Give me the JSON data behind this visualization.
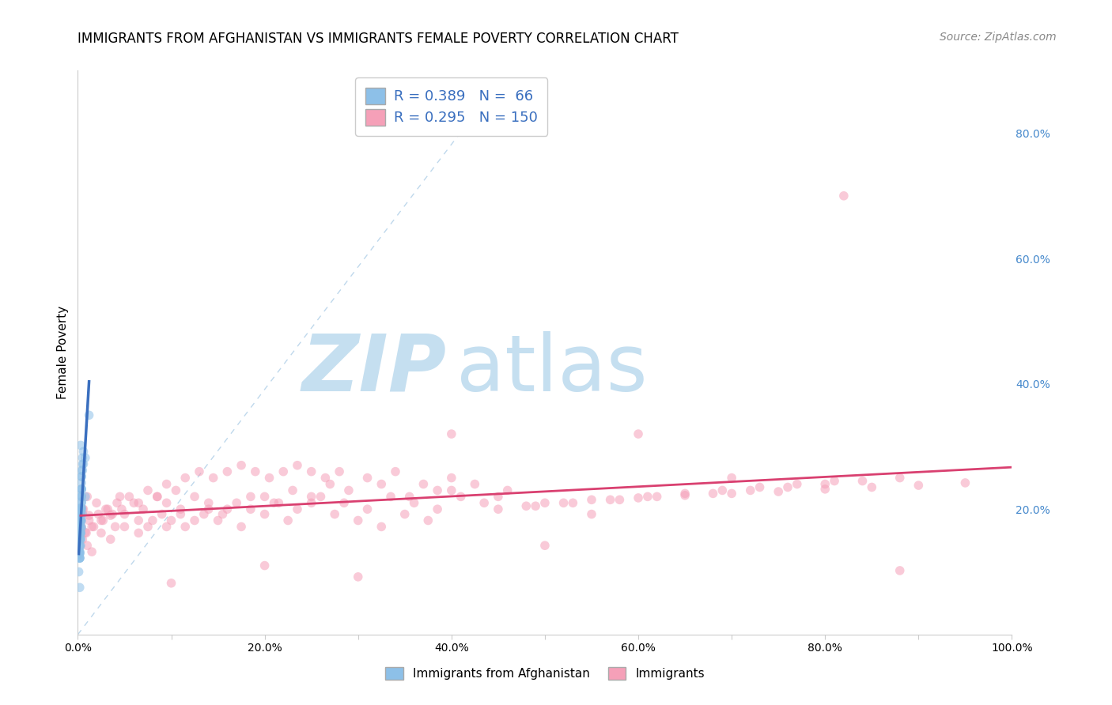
{
  "title": "IMMIGRANTS FROM AFGHANISTAN VS IMMIGRANTS FEMALE POVERTY CORRELATION CHART",
  "source": "Source: ZipAtlas.com",
  "ylabel": "Female Poverty",
  "xlim": [
    0.0,
    1.0
  ],
  "ylim": [
    0.0,
    0.9
  ],
  "xtick_labels": [
    "0.0%",
    "",
    "20.0%",
    "",
    "40.0%",
    "",
    "60.0%",
    "",
    "80.0%",
    "",
    "100.0%"
  ],
  "xtick_vals": [
    0.0,
    0.1,
    0.2,
    0.3,
    0.4,
    0.5,
    0.6,
    0.7,
    0.8,
    0.9,
    1.0
  ],
  "ytick_labels": [
    "20.0%",
    "40.0%",
    "60.0%",
    "80.0%"
  ],
  "ytick_vals": [
    0.2,
    0.4,
    0.6,
    0.8
  ],
  "grid_color": "#cccccc",
  "background_color": "#ffffff",
  "legend_color1": "#8dc0e8",
  "legend_color2": "#f5a0b8",
  "scatter1_color": "#8dc0e8",
  "scatter2_color": "#f5a0b8",
  "line1_color": "#3a6fbf",
  "line2_color": "#d94070",
  "diag_line_color": "#b8d4ea",
  "title_fontsize": 12,
  "source_fontsize": 10,
  "ylabel_fontsize": 11,
  "tick_fontsize": 10,
  "scatter_size": 70,
  "scatter_alpha": 0.55,
  "watermark_zip_color": "#c5dff0",
  "watermark_atlas_color": "#c5dff0",
  "blue_x": [
    0.002,
    0.003,
    0.002,
    0.003,
    0.004,
    0.003,
    0.004,
    0.002,
    0.002,
    0.003,
    0.003,
    0.004,
    0.002,
    0.004,
    0.003,
    0.003,
    0.004,
    0.002,
    0.003,
    0.003,
    0.002,
    0.002,
    0.003,
    0.003,
    0.002,
    0.002,
    0.003,
    0.003,
    0.004,
    0.004,
    0.004,
    0.005,
    0.006,
    0.008,
    0.004,
    0.003,
    0.003,
    0.002,
    0.002,
    0.004,
    0.004,
    0.005,
    0.005,
    0.006,
    0.004,
    0.003,
    0.003,
    0.002,
    0.002,
    0.001,
    0.002,
    0.003,
    0.003,
    0.002,
    0.002,
    0.003,
    0.003,
    0.004,
    0.004,
    0.003,
    0.002,
    0.012,
    0.008,
    0.005,
    0.004,
    0.003
  ],
  "blue_y": [
    0.175,
    0.182,
    0.155,
    0.2,
    0.22,
    0.19,
    0.21,
    0.163,
    0.14,
    0.178,
    0.19,
    0.2,
    0.13,
    0.17,
    0.153,
    0.162,
    0.182,
    0.142,
    0.192,
    0.172,
    0.122,
    0.132,
    0.162,
    0.202,
    0.128,
    0.142,
    0.152,
    0.222,
    0.242,
    0.232,
    0.252,
    0.262,
    0.272,
    0.282,
    0.212,
    0.192,
    0.162,
    0.132,
    0.122,
    0.232,
    0.252,
    0.272,
    0.282,
    0.292,
    0.202,
    0.182,
    0.172,
    0.152,
    0.122,
    0.1,
    0.13,
    0.142,
    0.182,
    0.122,
    0.15,
    0.17,
    0.2,
    0.22,
    0.232,
    0.162,
    0.075,
    0.35,
    0.22,
    0.192,
    0.262,
    0.302
  ],
  "pink_x": [
    0.003,
    0.005,
    0.008,
    0.01,
    0.012,
    0.015,
    0.02,
    0.025,
    0.03,
    0.035,
    0.04,
    0.045,
    0.05,
    0.06,
    0.065,
    0.07,
    0.075,
    0.085,
    0.09,
    0.095,
    0.1,
    0.11,
    0.115,
    0.125,
    0.135,
    0.14,
    0.15,
    0.16,
    0.175,
    0.185,
    0.2,
    0.21,
    0.225,
    0.235,
    0.25,
    0.26,
    0.275,
    0.285,
    0.3,
    0.31,
    0.325,
    0.335,
    0.35,
    0.36,
    0.375,
    0.385,
    0.4,
    0.41,
    0.425,
    0.435,
    0.45,
    0.46,
    0.005,
    0.01,
    0.015,
    0.025,
    0.035,
    0.05,
    0.065,
    0.08,
    0.095,
    0.11,
    0.125,
    0.14,
    0.155,
    0.17,
    0.185,
    0.2,
    0.215,
    0.23,
    0.25,
    0.27,
    0.29,
    0.31,
    0.325,
    0.34,
    0.355,
    0.37,
    0.385,
    0.4,
    0.003,
    0.004,
    0.006,
    0.009,
    0.012,
    0.017,
    0.022,
    0.027,
    0.032,
    0.037,
    0.042,
    0.047,
    0.055,
    0.065,
    0.075,
    0.085,
    0.095,
    0.105,
    0.115,
    0.13,
    0.145,
    0.16,
    0.175,
    0.19,
    0.205,
    0.22,
    0.235,
    0.25,
    0.265,
    0.28,
    0.5,
    0.55,
    0.6,
    0.65,
    0.7,
    0.75,
    0.8,
    0.85,
    0.9,
    0.95,
    0.6,
    0.4,
    0.7,
    0.2,
    0.5,
    0.3,
    0.1,
    0.82,
    0.88,
    0.55,
    0.48,
    0.52,
    0.58,
    0.62,
    0.68,
    0.72,
    0.76,
    0.8,
    0.84,
    0.88,
    0.45,
    0.49,
    0.53,
    0.57,
    0.61,
    0.65,
    0.69,
    0.73,
    0.77,
    0.81
  ],
  "pink_y": [
    0.182,
    0.2,
    0.163,
    0.22,
    0.19,
    0.172,
    0.21,
    0.182,
    0.2,
    0.19,
    0.172,
    0.22,
    0.192,
    0.21,
    0.182,
    0.2,
    0.172,
    0.22,
    0.192,
    0.21,
    0.182,
    0.2,
    0.172,
    0.22,
    0.192,
    0.21,
    0.182,
    0.2,
    0.172,
    0.22,
    0.192,
    0.21,
    0.182,
    0.2,
    0.21,
    0.22,
    0.192,
    0.21,
    0.182,
    0.2,
    0.172,
    0.22,
    0.192,
    0.21,
    0.182,
    0.2,
    0.23,
    0.22,
    0.24,
    0.21,
    0.22,
    0.23,
    0.152,
    0.142,
    0.132,
    0.162,
    0.152,
    0.172,
    0.162,
    0.182,
    0.172,
    0.192,
    0.182,
    0.2,
    0.192,
    0.21,
    0.2,
    0.22,
    0.21,
    0.23,
    0.22,
    0.24,
    0.23,
    0.25,
    0.24,
    0.26,
    0.22,
    0.24,
    0.23,
    0.25,
    0.192,
    0.172,
    0.2,
    0.162,
    0.182,
    0.172,
    0.192,
    0.182,
    0.2,
    0.192,
    0.21,
    0.2,
    0.22,
    0.21,
    0.23,
    0.22,
    0.24,
    0.23,
    0.25,
    0.26,
    0.25,
    0.26,
    0.27,
    0.26,
    0.25,
    0.26,
    0.27,
    0.26,
    0.25,
    0.26,
    0.21,
    0.215,
    0.218,
    0.222,
    0.225,
    0.228,
    0.232,
    0.235,
    0.238,
    0.242,
    0.32,
    0.32,
    0.25,
    0.11,
    0.142,
    0.092,
    0.082,
    0.7,
    0.102,
    0.192,
    0.205,
    0.21,
    0.215,
    0.22,
    0.225,
    0.23,
    0.235,
    0.24,
    0.245,
    0.25,
    0.2,
    0.205,
    0.21,
    0.215,
    0.22,
    0.225,
    0.23,
    0.235,
    0.24,
    0.245
  ]
}
